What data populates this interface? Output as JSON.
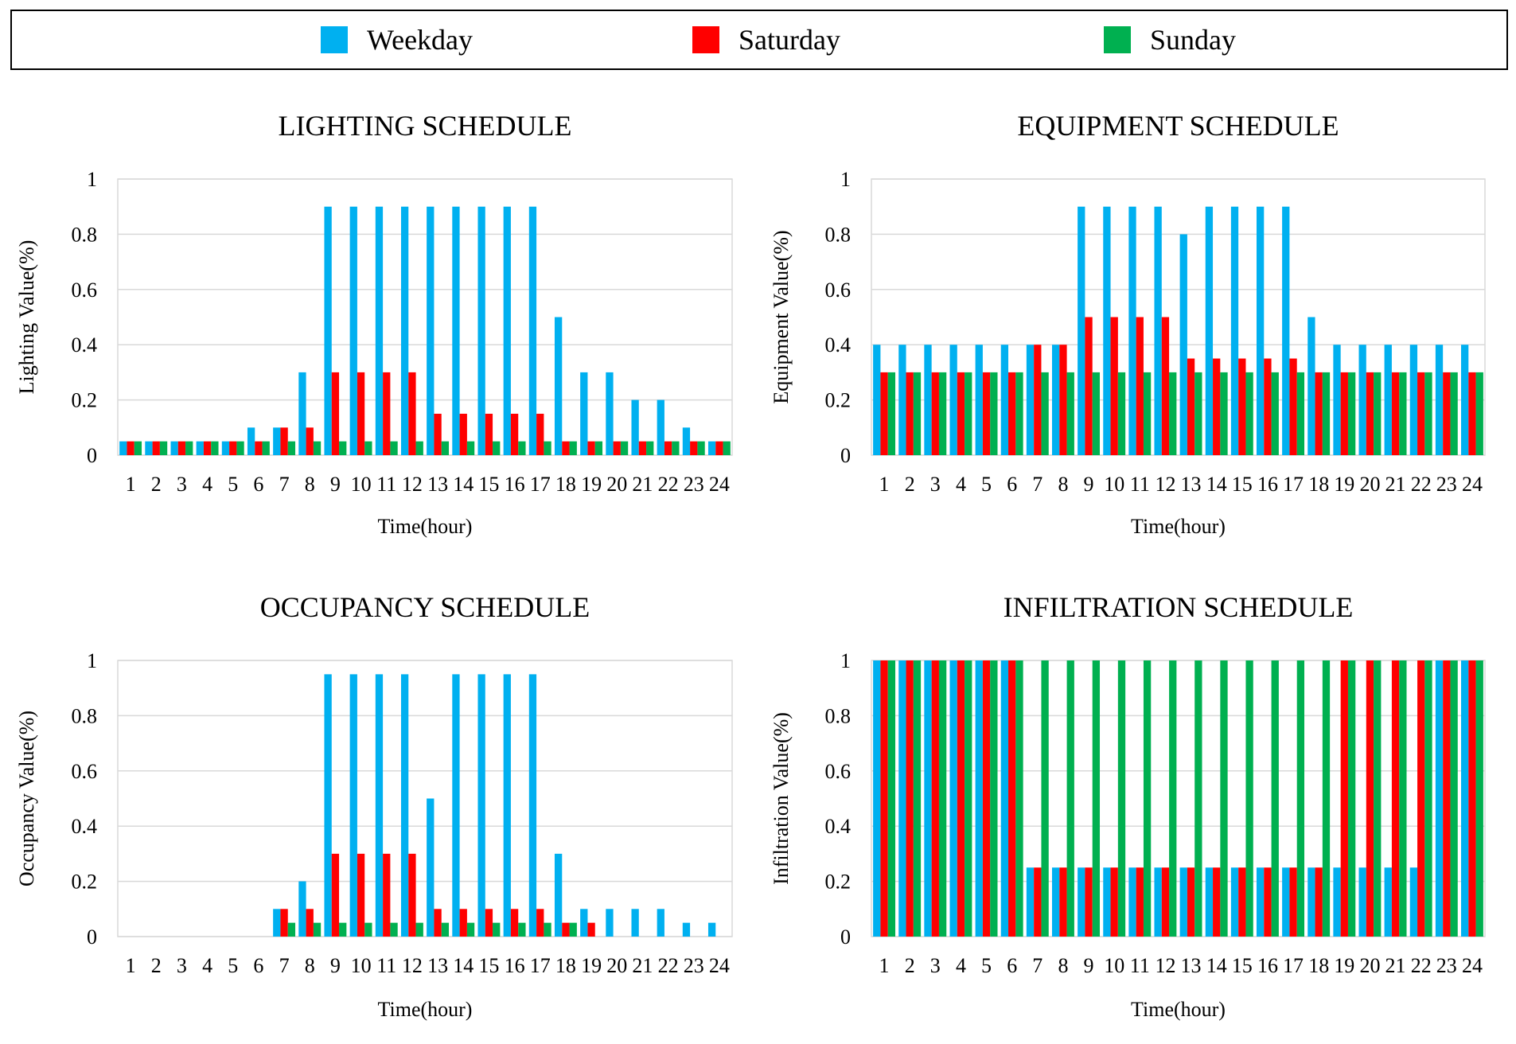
{
  "legend": [
    {
      "label": "Weekday",
      "color": "#00b0f0"
    },
    {
      "label": "Saturday",
      "color": "#ff0000"
    },
    {
      "label": "Sunday",
      "color": "#00b050"
    }
  ],
  "chart_data": [
    {
      "type": "bar",
      "title": "LIGHTING SCHEDULE",
      "xlabel": "Time(hour)",
      "ylabel": "Lighting Value(%)",
      "ylim": [
        0,
        1
      ],
      "yticks": [
        "0",
        "0.2",
        "0.4",
        "0.6",
        "0.8",
        "1"
      ],
      "categories": [
        "1",
        "2",
        "3",
        "4",
        "5",
        "6",
        "7",
        "8",
        "9",
        "10",
        "11",
        "12",
        "13",
        "14",
        "15",
        "16",
        "17",
        "18",
        "19",
        "20",
        "21",
        "22",
        "23",
        "24"
      ],
      "series": [
        {
          "name": "Weekday",
          "values": [
            0.05,
            0.05,
            0.05,
            0.05,
            0.05,
            0.1,
            0.1,
            0.3,
            0.9,
            0.9,
            0.9,
            0.9,
            0.9,
            0.9,
            0.9,
            0.9,
            0.9,
            0.5,
            0.3,
            0.3,
            0.2,
            0.2,
            0.1,
            0.05
          ]
        },
        {
          "name": "Saturday",
          "values": [
            0.05,
            0.05,
            0.05,
            0.05,
            0.05,
            0.05,
            0.1,
            0.1,
            0.3,
            0.3,
            0.3,
            0.3,
            0.15,
            0.15,
            0.15,
            0.15,
            0.15,
            0.05,
            0.05,
            0.05,
            0.05,
            0.05,
            0.05,
            0.05
          ]
        },
        {
          "name": "Sunday",
          "values": [
            0.05,
            0.05,
            0.05,
            0.05,
            0.05,
            0.05,
            0.05,
            0.05,
            0.05,
            0.05,
            0.05,
            0.05,
            0.05,
            0.05,
            0.05,
            0.05,
            0.05,
            0.05,
            0.05,
            0.05,
            0.05,
            0.05,
            0.05,
            0.05
          ]
        }
      ]
    },
    {
      "type": "bar",
      "title": "EQUIPMENT SCHEDULE",
      "xlabel": "Time(hour)",
      "ylabel": "Equipment Value(%)",
      "ylim": [
        0,
        1
      ],
      "yticks": [
        "0",
        "0.2",
        "0.4",
        "0.6",
        "0.8",
        "1"
      ],
      "categories": [
        "1",
        "2",
        "3",
        "4",
        "5",
        "6",
        "7",
        "8",
        "9",
        "10",
        "11",
        "12",
        "13",
        "14",
        "15",
        "16",
        "17",
        "18",
        "19",
        "20",
        "21",
        "22",
        "23",
        "24"
      ],
      "series": [
        {
          "name": "Weekday",
          "values": [
            0.4,
            0.4,
            0.4,
            0.4,
            0.4,
            0.4,
            0.4,
            0.4,
            0.9,
            0.9,
            0.9,
            0.9,
            0.8,
            0.9,
            0.9,
            0.9,
            0.9,
            0.5,
            0.4,
            0.4,
            0.4,
            0.4,
            0.4,
            0.4
          ]
        },
        {
          "name": "Saturday",
          "values": [
            0.3,
            0.3,
            0.3,
            0.3,
            0.3,
            0.3,
            0.4,
            0.4,
            0.5,
            0.5,
            0.5,
            0.5,
            0.35,
            0.35,
            0.35,
            0.35,
            0.35,
            0.3,
            0.3,
            0.3,
            0.3,
            0.3,
            0.3,
            0.3
          ]
        },
        {
          "name": "Sunday",
          "values": [
            0.3,
            0.3,
            0.3,
            0.3,
            0.3,
            0.3,
            0.3,
            0.3,
            0.3,
            0.3,
            0.3,
            0.3,
            0.3,
            0.3,
            0.3,
            0.3,
            0.3,
            0.3,
            0.3,
            0.3,
            0.3,
            0.3,
            0.3,
            0.3
          ]
        }
      ]
    },
    {
      "type": "bar",
      "title": "OCCUPANCY SCHEDULE",
      "xlabel": "Time(hour)",
      "ylabel": "Occupancy Value(%)",
      "ylim": [
        0,
        1
      ],
      "yticks": [
        "0",
        "0.2",
        "0.4",
        "0.6",
        "0.8",
        "1"
      ],
      "categories": [
        "1",
        "2",
        "3",
        "4",
        "5",
        "6",
        "7",
        "8",
        "9",
        "10",
        "11",
        "12",
        "13",
        "14",
        "15",
        "16",
        "17",
        "18",
        "19",
        "20",
        "21",
        "22",
        "23",
        "24"
      ],
      "series": [
        {
          "name": "Weekday",
          "values": [
            0,
            0,
            0,
            0,
            0,
            0,
            0.1,
            0.2,
            0.95,
            0.95,
            0.95,
            0.95,
            0.5,
            0.95,
            0.95,
            0.95,
            0.95,
            0.3,
            0.1,
            0.1,
            0.1,
            0.1,
            0.05,
            0.05
          ]
        },
        {
          "name": "Saturday",
          "values": [
            0,
            0,
            0,
            0,
            0,
            0,
            0.1,
            0.1,
            0.3,
            0.3,
            0.3,
            0.3,
            0.1,
            0.1,
            0.1,
            0.1,
            0.1,
            0.05,
            0.05,
            0,
            0,
            0,
            0,
            0
          ]
        },
        {
          "name": "Sunday",
          "values": [
            0,
            0,
            0,
            0,
            0,
            0,
            0.05,
            0.05,
            0.05,
            0.05,
            0.05,
            0.05,
            0.05,
            0.05,
            0.05,
            0.05,
            0.05,
            0.05,
            0,
            0,
            0,
            0,
            0,
            0
          ]
        }
      ]
    },
    {
      "type": "bar",
      "title": "INFILTRATION SCHEDULE",
      "xlabel": "Time(hour)",
      "ylabel": "Infiltration Value(%)",
      "ylim": [
        0,
        1
      ],
      "yticks": [
        "0",
        "0.2",
        "0.4",
        "0.6",
        "0.8",
        "1"
      ],
      "categories": [
        "1",
        "2",
        "3",
        "4",
        "5",
        "6",
        "7",
        "8",
        "9",
        "10",
        "11",
        "12",
        "13",
        "14",
        "15",
        "16",
        "17",
        "18",
        "19",
        "20",
        "21",
        "22",
        "23",
        "24"
      ],
      "series": [
        {
          "name": "Weekday",
          "values": [
            1,
            1,
            1,
            1,
            1,
            1,
            0.25,
            0.25,
            0.25,
            0.25,
            0.25,
            0.25,
            0.25,
            0.25,
            0.25,
            0.25,
            0.25,
            0.25,
            0.25,
            0.25,
            0.25,
            0.25,
            1,
            1
          ]
        },
        {
          "name": "Saturday",
          "values": [
            1,
            1,
            1,
            1,
            1,
            1,
            0.25,
            0.25,
            0.25,
            0.25,
            0.25,
            0.25,
            0.25,
            0.25,
            0.25,
            0.25,
            0.25,
            0.25,
            1,
            1,
            1,
            1,
            1,
            1
          ]
        },
        {
          "name": "Sunday",
          "values": [
            1,
            1,
            1,
            1,
            1,
            1,
            1,
            1,
            1,
            1,
            1,
            1,
            1,
            1,
            1,
            1,
            1,
            1,
            1,
            1,
            1,
            1,
            1,
            1
          ]
        }
      ]
    }
  ]
}
